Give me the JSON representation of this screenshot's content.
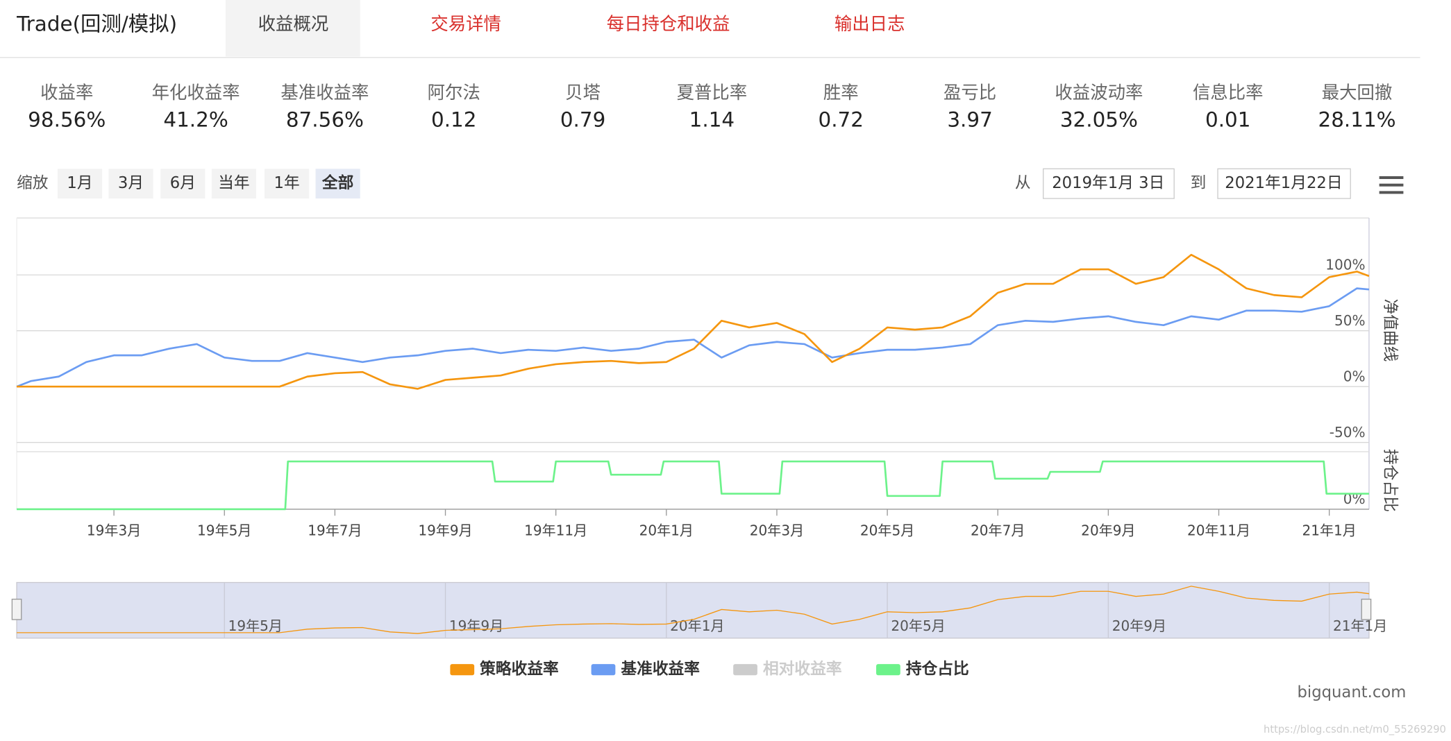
{
  "header": {
    "title": "Trade(回测/模拟)",
    "tabs": [
      "收益概况",
      "交易详情",
      "每日持仓和收益",
      "输出日志"
    ]
  },
  "metrics": [
    {
      "label": "收益率",
      "value": "98.56%"
    },
    {
      "label": "年化收益率",
      "value": "41.2%"
    },
    {
      "label": "基准收益率",
      "value": "87.56%"
    },
    {
      "label": "阿尔法",
      "value": "0.12"
    },
    {
      "label": "贝塔",
      "value": "0.79"
    },
    {
      "label": "夏普比率",
      "value": "1.14"
    },
    {
      "label": "胜率",
      "value": "0.72"
    },
    {
      "label": "盈亏比",
      "value": "3.97"
    },
    {
      "label": "收益波动率",
      "value": "32.05%"
    },
    {
      "label": "信息比率",
      "value": "0.01"
    },
    {
      "label": "最大回撤",
      "value": "28.11%"
    }
  ],
  "zoom": {
    "label": "缩放",
    "buttons": [
      "1月",
      "3月",
      "6月",
      "当年",
      "1年",
      "全部"
    ]
  },
  "range": {
    "from_label": "从",
    "from": "2019年1月 3日",
    "to_label": "到",
    "to": "2021年1月22日"
  },
  "chart_data": {
    "type": "line",
    "ylabel": "净值曲线",
    "y2label": "持仓占比",
    "xlim": [
      0.24,
      24.72
    ],
    "xticks": [
      {
        "value": 2,
        "label": "19年3月"
      },
      {
        "value": 4,
        "label": "19年5月"
      },
      {
        "value": 6,
        "label": "19年7月"
      },
      {
        "value": 8,
        "label": "19年9月"
      },
      {
        "value": 10,
        "label": "19年11月"
      },
      {
        "value": 12,
        "label": "20年1月"
      },
      {
        "value": 14,
        "label": "20年3月"
      },
      {
        "value": 16,
        "label": "20年5月"
      },
      {
        "value": 18,
        "label": "20年7月"
      },
      {
        "value": 20,
        "label": "20年9月"
      },
      {
        "value": 22,
        "label": "20年11月"
      },
      {
        "value": 24,
        "label": "21年1月"
      }
    ],
    "ylim": [
      -50,
      151
    ],
    "yticks": [
      {
        "value": -50,
        "label": "-50%"
      },
      {
        "value": 0,
        "label": "0%"
      },
      {
        "value": 50,
        "label": "50%"
      },
      {
        "value": 100,
        "label": "100%"
      }
    ],
    "y2lim": [
      0,
      100
    ],
    "y2ticks": [
      {
        "value": 0,
        "label": "0%"
      }
    ],
    "grid": true,
    "x": [
      0.24,
      0.5,
      1,
      1.5,
      2,
      2.5,
      3,
      3.5,
      4,
      4.5,
      5,
      5.5,
      6,
      6.5,
      7,
      7.5,
      8,
      8.5,
      9,
      9.5,
      10,
      10.5,
      11,
      11.5,
      12,
      12.5,
      13,
      13.5,
      14,
      14.5,
      15,
      15.5,
      16,
      16.5,
      17,
      17.5,
      18,
      18.5,
      19,
      19.5,
      20,
      20.5,
      21,
      21.5,
      22,
      22.5,
      23,
      23.5,
      24,
      24.5,
      24.72
    ],
    "series": [
      {
        "name": "策略收益率",
        "color": "#f5960f",
        "values": [
          0,
          0,
          0,
          0,
          0,
          0,
          0,
          0,
          0,
          0,
          0,
          9,
          12,
          13,
          2,
          -2,
          6,
          8,
          10,
          16,
          20,
          22,
          23,
          21,
          22,
          34,
          59,
          53,
          57,
          47,
          22,
          34,
          53,
          51,
          53,
          63,
          84,
          92,
          92,
          105,
          105,
          92,
          98,
          118,
          105,
          88,
          82,
          80,
          98,
          103,
          99
        ]
      },
      {
        "name": "基准收益率",
        "color": "#6b9cf2",
        "values": [
          0,
          5,
          9,
          22,
          28,
          28,
          34,
          38,
          26,
          23,
          23,
          30,
          26,
          22,
          26,
          28,
          32,
          34,
          30,
          33,
          32,
          35,
          32,
          34,
          40,
          42,
          26,
          37,
          40,
          38,
          26,
          30,
          33,
          33,
          35,
          38,
          55,
          59,
          58,
          61,
          63,
          58,
          55,
          63,
          60,
          68,
          68,
          67,
          72,
          88,
          87
        ]
      },
      {
        "name": "持仓占比",
        "color": "#6cf28a",
        "axis": "y2",
        "x": [
          0.24,
          5.1,
          5.15,
          8.85,
          8.9,
          9.95,
          10,
          10.95,
          11,
          11.9,
          11.95,
          12.95,
          13,
          14.05,
          14.1,
          15.95,
          16,
          16.95,
          17,
          17.9,
          17.95,
          18.9,
          18.95,
          19.85,
          19.9,
          23.9,
          23.95,
          24.72
        ],
        "values": [
          0,
          0,
          83,
          83,
          48,
          48,
          83,
          83,
          60,
          60,
          83,
          83,
          27,
          27,
          83,
          83,
          23,
          23,
          83,
          83,
          53,
          53,
          65,
          65,
          83,
          83,
          27,
          27
        ]
      }
    ],
    "legend": [
      {
        "name": "策略收益率",
        "color": "#f5960f"
      },
      {
        "name": "基准收益率",
        "color": "#6b9cf2"
      },
      {
        "name": "相对收益率",
        "color": "#cccccc"
      },
      {
        "name": "持仓占比",
        "color": "#6cf28a"
      }
    ],
    "navigator": {
      "xticks": [
        {
          "value": 4,
          "label": "19年5月"
        },
        {
          "value": 8,
          "label": "19年9月"
        },
        {
          "value": 12,
          "label": "20年1月"
        },
        {
          "value": 16,
          "label": "20年5月"
        },
        {
          "value": 20,
          "label": "20年9月"
        },
        {
          "value": 24,
          "label": "21年1月"
        }
      ]
    }
  },
  "footer": {
    "brand": "bigquant.com",
    "watermark": "https://blog.csdn.net/m0_55269290"
  }
}
